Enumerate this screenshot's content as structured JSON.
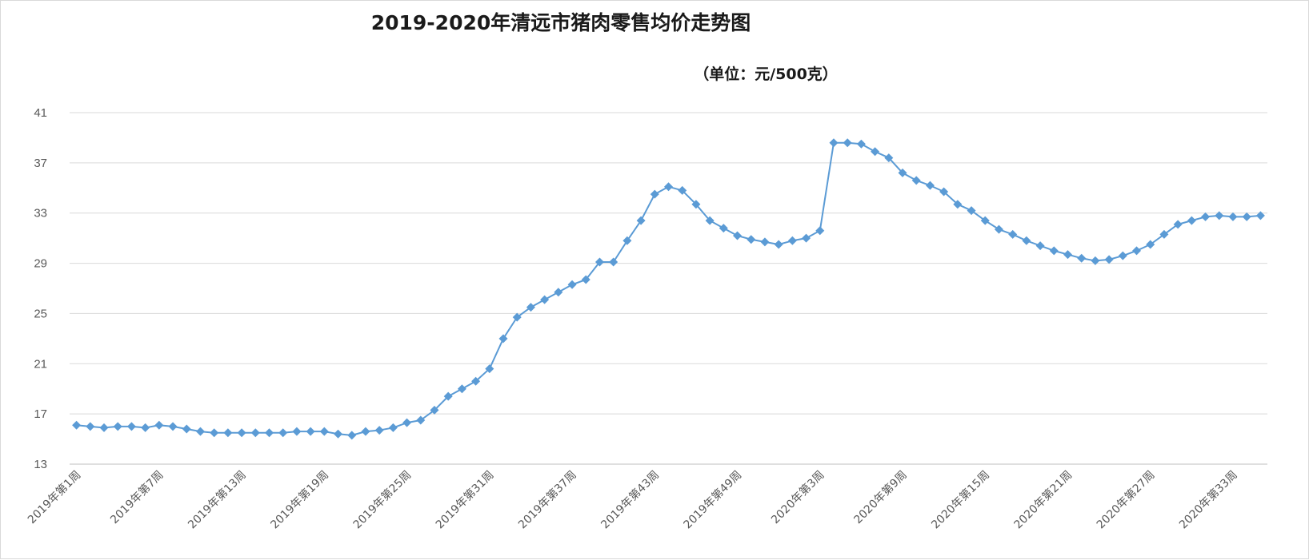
{
  "chart_data": {
    "type": "line",
    "title": "2019-2020年清远市猪肉零售均价走势图",
    "unit_note": "（单位：元/500克）",
    "ylim": [
      13,
      41
    ],
    "yticks": [
      13,
      17,
      21,
      25,
      29,
      33,
      37,
      41
    ],
    "grid": true,
    "legend": "none",
    "x_tick_labels": [
      "2019年第1周",
      "2019年第7周",
      "2019年第13周",
      "2019年第19周",
      "2019年第25周",
      "2019年第31周",
      "2019年第37周",
      "2019年第43周",
      "2019年第49周",
      "2020年第3周",
      "2020年第9周",
      "2020年第15周",
      "2020年第21周",
      "2020年第27周",
      "2020年第33周"
    ],
    "x_tick_every": 6,
    "colors": {
      "line": "#5b9bd5",
      "marker": "#5b9bd5"
    },
    "series": [
      {
        "values": [
          16.1,
          16.0,
          15.9,
          16.0,
          16.0,
          15.9,
          16.1,
          16.0,
          15.8,
          15.6,
          15.5,
          15.5,
          15.5,
          15.5,
          15.5,
          15.5,
          15.6,
          15.6,
          15.6,
          15.4,
          15.3,
          15.6,
          15.7,
          15.9,
          16.3,
          16.5,
          17.3,
          18.4,
          19.0,
          19.6,
          20.6,
          23.0,
          24.7,
          25.5,
          26.1,
          26.7,
          27.3,
          27.7,
          29.1,
          29.1,
          30.8,
          32.4,
          34.5,
          35.1,
          34.8,
          33.7,
          32.4,
          31.8,
          31.2,
          30.9,
          30.7,
          30.5,
          30.8,
          31.0,
          31.6,
          38.6,
          38.6,
          38.5,
          37.9,
          37.4,
          36.2,
          35.6,
          35.2,
          34.7,
          33.7,
          33.2,
          32.4,
          31.7,
          31.3,
          30.8,
          30.4,
          30.0,
          29.7,
          29.4,
          29.2,
          29.3,
          29.6,
          30.0,
          30.5,
          31.3,
          32.1,
          32.4,
          32.7,
          32.8,
          32.7,
          32.7,
          32.8
        ]
      }
    ]
  }
}
